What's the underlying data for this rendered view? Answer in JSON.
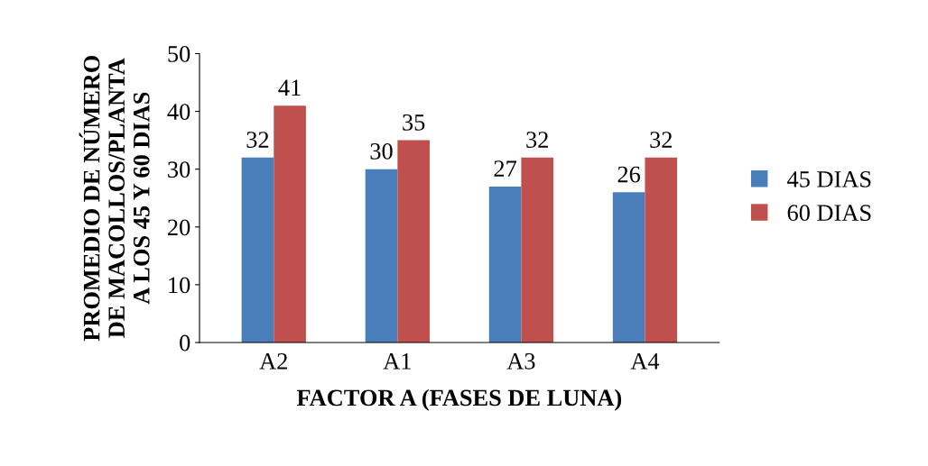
{
  "chart_data": {
    "type": "bar",
    "xlabel": "FACTOR A (FASES DE LUNA)",
    "ylabel": "PROMEDIO DE NÚMERO\nDE MACOLLOS/PLANTA\nA LOS 45 Y 60 DIAS",
    "categories": [
      "A2",
      "A1",
      "A3",
      "A4"
    ],
    "series": [
      {
        "name": "45 DIAS",
        "color": "#4a7ebb",
        "values": [
          32,
          30,
          27,
          26
        ]
      },
      {
        "name": "60 DIAS",
        "color": "#c0504d",
        "values": [
          41,
          35,
          32,
          32
        ]
      }
    ],
    "ylim": [
      0,
      50
    ],
    "yticks": [
      0,
      10,
      20,
      30,
      40,
      50
    ],
    "grid": false,
    "legend": "right",
    "data_labels": true
  }
}
